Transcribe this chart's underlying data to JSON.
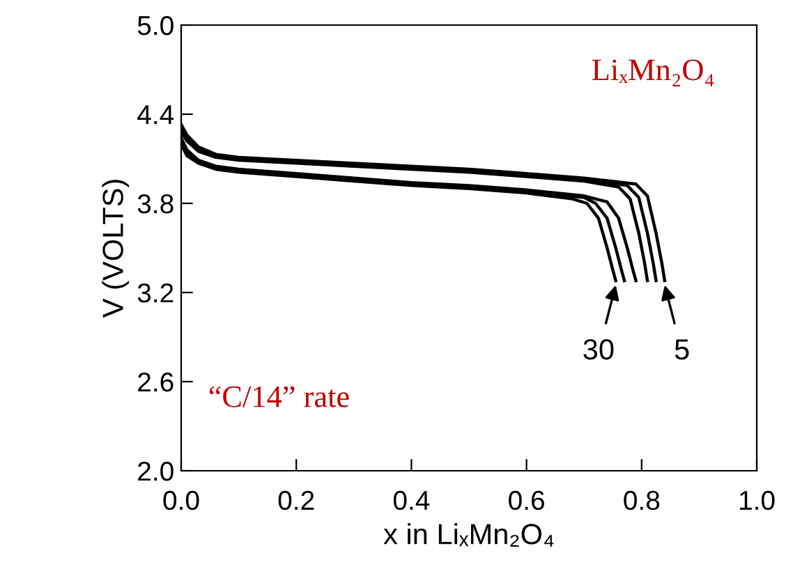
{
  "chart_data": {
    "type": "line",
    "xlabel": "x in LiₓMn₂O₄",
    "ylabel": "V (VOLTS)",
    "xlim": [
      0.0,
      1.0
    ],
    "ylim": [
      2.0,
      5.0
    ],
    "xticks": [
      {
        "value": 0.0,
        "label": "0.0"
      },
      0.2,
      0.4,
      0.6,
      0.8,
      {
        "value": 1.0,
        "label": "1.0"
      }
    ],
    "yticks": [
      {
        "value": 2.0,
        "label": "2.0"
      },
      2.6,
      3.2,
      3.8,
      4.4,
      {
        "value": 5.0,
        "label": "5.0"
      }
    ],
    "grid": false,
    "legend": false,
    "marker": "none",
    "line_style": "solid",
    "series": [
      {
        "color": "#000000",
        "x": [
          0,
          0.01,
          0.03,
          0.06,
          0.1,
          0.2,
          0.3,
          0.4,
          0.5,
          0.6,
          0.7,
          0.79,
          0.81,
          0.825,
          0.835,
          0.84
        ],
        "values": [
          4.33,
          4.26,
          4.18,
          4.13,
          4.11,
          4.09,
          4.07,
          4.05,
          4.03,
          4.0,
          3.97,
          3.93,
          3.85,
          3.6,
          3.4,
          3.28
        ]
      },
      {
        "color": "#000000",
        "x": [
          0,
          0.01,
          0.03,
          0.06,
          0.1,
          0.2,
          0.3,
          0.4,
          0.5,
          0.6,
          0.7,
          0.775,
          0.795,
          0.81,
          0.82,
          0.825
        ],
        "values": [
          4.3,
          4.24,
          4.16,
          4.12,
          4.1,
          4.08,
          4.06,
          4.04,
          4.02,
          3.99,
          3.96,
          3.92,
          3.84,
          3.6,
          3.4,
          3.28
        ]
      },
      {
        "color": "#000000",
        "x": [
          0,
          0.01,
          0.03,
          0.06,
          0.1,
          0.2,
          0.3,
          0.4,
          0.5,
          0.6,
          0.7,
          0.76,
          0.78,
          0.795,
          0.805,
          0.81
        ],
        "values": [
          4.28,
          4.22,
          4.15,
          4.11,
          4.09,
          4.07,
          4.05,
          4.03,
          4.01,
          3.98,
          3.95,
          3.91,
          3.83,
          3.6,
          3.4,
          3.28
        ]
      },
      {
        "color": "#000000",
        "x": [
          0,
          0.01,
          0.03,
          0.06,
          0.1,
          0.2,
          0.3,
          0.4,
          0.5,
          0.6,
          0.7,
          0.74,
          0.76,
          0.775,
          0.785,
          0.79
        ],
        "values": [
          4.24,
          4.16,
          4.09,
          4.05,
          4.03,
          4.0,
          3.97,
          3.94,
          3.92,
          3.89,
          3.85,
          3.81,
          3.7,
          3.5,
          3.35,
          3.28
        ]
      },
      {
        "color": "#000000",
        "x": [
          0,
          0.01,
          0.03,
          0.06,
          0.1,
          0.2,
          0.3,
          0.4,
          0.5,
          0.6,
          0.7,
          0.72,
          0.74,
          0.755,
          0.765,
          0.77
        ],
        "values": [
          4.22,
          4.14,
          4.08,
          4.04,
          4.02,
          3.99,
          3.96,
          3.93,
          3.91,
          3.88,
          3.84,
          3.8,
          3.7,
          3.5,
          3.35,
          3.28
        ]
      },
      {
        "color": "#000000",
        "x": [
          0,
          0.01,
          0.03,
          0.06,
          0.1,
          0.2,
          0.3,
          0.4,
          0.5,
          0.6,
          0.68,
          0.705,
          0.725,
          0.74,
          0.75,
          0.755
        ],
        "values": [
          4.2,
          4.12,
          4.07,
          4.03,
          4.01,
          3.98,
          3.95,
          3.92,
          3.9,
          3.87,
          3.83,
          3.8,
          3.7,
          3.5,
          3.35,
          3.28
        ]
      }
    ],
    "annotations": [
      "LiₓMn₂O₄",
      "“C/14” rate",
      {
        "text": "30",
        "x": 0.755,
        "y": 3.25
      },
      {
        "text": "5",
        "x": 0.84,
        "y": 3.25
      }
    ]
  }
}
